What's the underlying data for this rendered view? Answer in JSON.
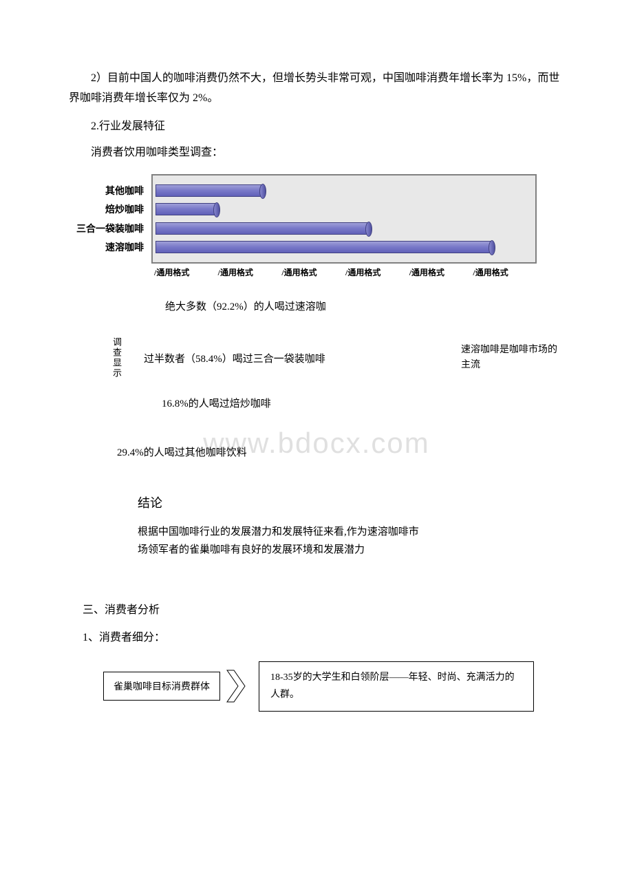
{
  "para1": "2）目前中国人的咖啡消费仍然不大，但增长势头非常可观，中国咖啡消费年增长率为 15%，而世界咖啡消费年增长率仅为 2%。",
  "section2_title": "2.行业发展特征",
  "survey_title": "消费者饮用咖啡类型调查：",
  "chart": {
    "categories": [
      "其他咖啡",
      "焙炒咖啡",
      "三合一袋装咖啡",
      "速溶咖啡"
    ],
    "values": [
      29.4,
      16.8,
      58.4,
      92.2
    ],
    "max_value": 100,
    "bar_color_light": "#a0a0d8",
    "bar_color_dark": "#6060b8",
    "border_color": "#808080",
    "background": "#e8e8e8",
    "x_labels": [
      "/通用格式",
      "/通用格式",
      "/通用格式",
      "/通用格式",
      "/通用格式",
      "/通用格式"
    ]
  },
  "survey": {
    "vertical_label": "调查显示",
    "line1": "绝大多数（92.2%）的人喝过速溶咖",
    "line2": "过半数者（58.4%）喝过三合一袋装咖啡",
    "line3": "16.8%的人喝过焙炒咖啡",
    "line4": "29.4%的人喝过其他咖啡饮料",
    "side_note": "速溶咖啡是咖啡市场的主流"
  },
  "conclusion": {
    "title": "结论",
    "text": "根据中国咖啡行业的发展潜力和发展特征来看,作为速溶咖啡市场领军者的雀巢咖啡有良好的发展环境和发展潜力"
  },
  "section3": "三、消费者分析",
  "sub1": "1、消费者细分：",
  "diagram": {
    "left_box": "雀巢咖啡目标消费群体",
    "right_box": "18-35岁的大学生和白领阶层——年轻、时尚、充满活力的人群。"
  },
  "watermark": "www.bdocx.com"
}
